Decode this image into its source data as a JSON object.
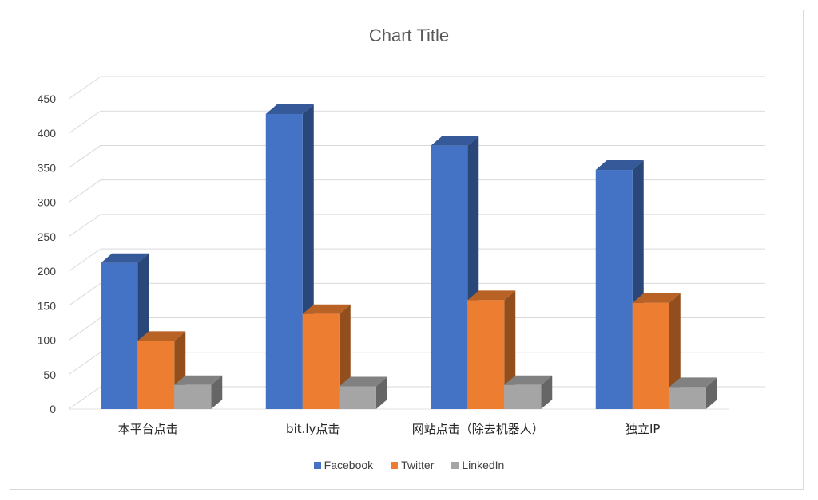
{
  "chart_data": {
    "type": "bar",
    "title": "Chart Title",
    "categories": [
      "本平台点击",
      "bit.ly点击",
      "网站点击（除去机器人）",
      "独立IP"
    ],
    "series": [
      {
        "name": "Facebook",
        "values": [
          212,
          428,
          382,
          347
        ],
        "color": "#4472c4"
      },
      {
        "name": "Twitter",
        "values": [
          99,
          138,
          158,
          154
        ],
        "color": "#ed7d31"
      },
      {
        "name": "LinkedIn",
        "values": [
          35,
          33,
          35,
          32
        ],
        "color": "#a5a5a5"
      }
    ],
    "yticks": [
      "0",
      "50",
      "100",
      "150",
      "200",
      "250",
      "300",
      "350",
      "400",
      "450"
    ],
    "ylim": [
      0,
      450
    ],
    "grid": true,
    "legend_position": "bottom",
    "style": "3d-clustered-column"
  }
}
